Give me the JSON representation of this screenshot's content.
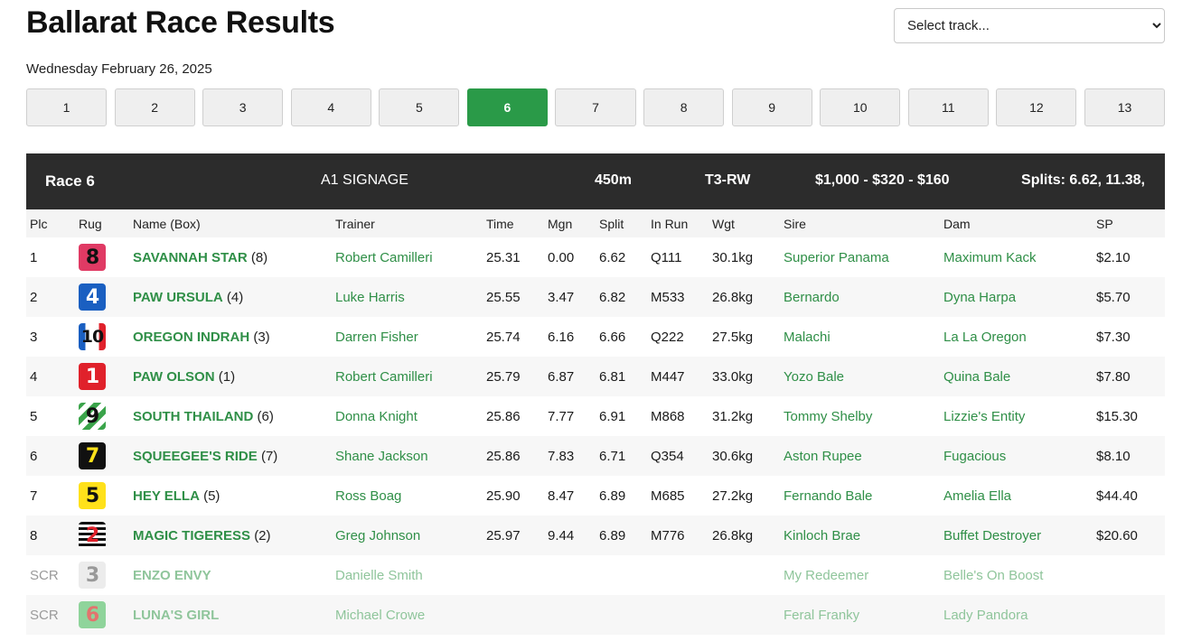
{
  "page": {
    "title": "Ballarat Race Results",
    "date": "Wednesday February 26, 2025",
    "track_select_placeholder": "Select track..."
  },
  "race_tabs": [
    "1",
    "2",
    "3",
    "4",
    "5",
    "6",
    "7",
    "8",
    "9",
    "10",
    "11",
    "12",
    "13"
  ],
  "active_race": "6",
  "race_header": {
    "race": "Race 6",
    "name": "A1 SIGNAGE",
    "distance": "450m",
    "grade": "T3-RW",
    "prize": "$1,000 - $320 - $160",
    "splits": "Splits: 6.62, 11.38,"
  },
  "columns": [
    "Plc",
    "Rug",
    "Name (Box)",
    "Trainer",
    "Time",
    "Mgn",
    "Split",
    "In Run",
    "Wgt",
    "Sire",
    "Dam",
    "SP"
  ],
  "rows": [
    {
      "plc": "1",
      "rug": "8",
      "name": "SAVANNAH STAR",
      "box": "(8)",
      "trainer": "Robert Camilleri",
      "time": "25.31",
      "mgn": "0.00",
      "split": "6.62",
      "inrun": "Q111",
      "wgt": "30.1kg",
      "sire": "Superior Panama",
      "dam": "Maximum Kack",
      "sp": "$2.10"
    },
    {
      "plc": "2",
      "rug": "4",
      "name": "PAW URSULA",
      "box": "(4)",
      "trainer": "Luke Harris",
      "time": "25.55",
      "mgn": "3.47",
      "split": "6.82",
      "inrun": "M533",
      "wgt": "26.8kg",
      "sire": "Bernardo",
      "dam": "Dyna Harpa",
      "sp": "$5.70"
    },
    {
      "plc": "3",
      "rug": "10",
      "name": "OREGON INDRAH",
      "box": "(3)",
      "trainer": "Darren Fisher",
      "time": "25.74",
      "mgn": "6.16",
      "split": "6.66",
      "inrun": "Q222",
      "wgt": "27.5kg",
      "sire": "Malachi",
      "dam": "La La Oregon",
      "sp": "$7.30"
    },
    {
      "plc": "4",
      "rug": "1",
      "name": "PAW OLSON",
      "box": "(1)",
      "trainer": "Robert Camilleri",
      "time": "25.79",
      "mgn": "6.87",
      "split": "6.81",
      "inrun": "M447",
      "wgt": "33.0kg",
      "sire": "Yozo Bale",
      "dam": "Quina Bale",
      "sp": "$7.80"
    },
    {
      "plc": "5",
      "rug": "9",
      "name": "SOUTH THAILAND",
      "box": "(6)",
      "trainer": "Donna Knight",
      "time": "25.86",
      "mgn": "7.77",
      "split": "6.91",
      "inrun": "M868",
      "wgt": "31.2kg",
      "sire": "Tommy Shelby",
      "dam": "Lizzie's Entity",
      "sp": "$15.30"
    },
    {
      "plc": "6",
      "rug": "7",
      "name": "SQUEEGEE'S RIDE",
      "box": "(7)",
      "trainer": "Shane Jackson",
      "time": "25.86",
      "mgn": "7.83",
      "split": "6.71",
      "inrun": "Q354",
      "wgt": "30.6kg",
      "sire": "Aston Rupee",
      "dam": "Fugacious",
      "sp": "$8.10"
    },
    {
      "plc": "7",
      "rug": "5",
      "name": "HEY ELLA",
      "box": "(5)",
      "trainer": "Ross Boag",
      "time": "25.90",
      "mgn": "8.47",
      "split": "6.89",
      "inrun": "M685",
      "wgt": "27.2kg",
      "sire": "Fernando Bale",
      "dam": "Amelia Ella",
      "sp": "$44.40"
    },
    {
      "plc": "8",
      "rug": "2",
      "name": "MAGIC TIGERESS",
      "box": "(2)",
      "trainer": "Greg Johnson",
      "time": "25.97",
      "mgn": "9.44",
      "split": "6.89",
      "inrun": "M776",
      "wgt": "26.8kg",
      "sire": "Kinloch Brae",
      "dam": "Buffet Destroyer",
      "sp": "$20.60"
    },
    {
      "plc": "SCR",
      "rug": "3",
      "name": "ENZO ENVY",
      "box": "",
      "trainer": "Danielle Smith",
      "time": "",
      "mgn": "",
      "split": "",
      "inrun": "",
      "wgt": "",
      "sire": "My Redeemer",
      "dam": "Belle's On Boost",
      "sp": "",
      "scratched": true
    },
    {
      "plc": "SCR",
      "rug": "6",
      "name": "LUNA'S GIRL",
      "box": "",
      "trainer": "Michael Crowe",
      "time": "",
      "mgn": "",
      "split": "",
      "inrun": "",
      "wgt": "",
      "sire": "Feral Franky",
      "dam": "Lady Pandora",
      "sp": "",
      "scratched": true
    }
  ]
}
